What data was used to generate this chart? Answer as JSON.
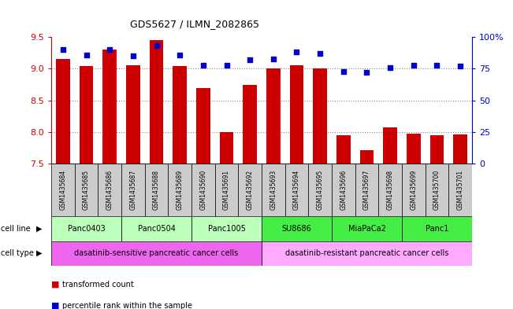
{
  "title": "GDS5627 / ILMN_2082865",
  "samples": [
    "GSM1435684",
    "GSM1435685",
    "GSM1435686",
    "GSM1435687",
    "GSM1435688",
    "GSM1435689",
    "GSM1435690",
    "GSM1435691",
    "GSM1435692",
    "GSM1435693",
    "GSM1435694",
    "GSM1435695",
    "GSM1435696",
    "GSM1435697",
    "GSM1435698",
    "GSM1435699",
    "GSM1435700",
    "GSM1435701"
  ],
  "transformed_count": [
    9.15,
    9.04,
    9.3,
    9.05,
    9.45,
    9.04,
    8.7,
    8.0,
    8.75,
    9.0,
    9.05,
    9.0,
    7.95,
    7.72,
    8.07,
    7.97,
    7.95,
    7.96
  ],
  "percentile_rank": [
    90,
    86,
    90,
    85,
    93,
    86,
    78,
    78,
    82,
    83,
    88,
    87,
    73,
    72,
    76,
    78,
    78,
    77
  ],
  "ylim_left": [
    7.5,
    9.5
  ],
  "ylim_right": [
    0,
    100
  ],
  "yticks_left": [
    7.5,
    8.0,
    8.5,
    9.0,
    9.5
  ],
  "yticks_right": [
    0,
    25,
    50,
    75,
    100
  ],
  "bar_color": "#cc0000",
  "dot_color": "#0000cc",
  "bar_bottom": 7.5,
  "cell_lines": [
    {
      "name": "Panc0403",
      "start": 0,
      "end": 3,
      "color": "#bbffbb"
    },
    {
      "name": "Panc0504",
      "start": 3,
      "end": 6,
      "color": "#bbffbb"
    },
    {
      "name": "Panc1005",
      "start": 6,
      "end": 9,
      "color": "#bbffbb"
    },
    {
      "name": "SU8686",
      "start": 9,
      "end": 12,
      "color": "#44ee44"
    },
    {
      "name": "MiaPaCa2",
      "start": 12,
      "end": 15,
      "color": "#44ee44"
    },
    {
      "name": "Panc1",
      "start": 15,
      "end": 18,
      "color": "#44ee44"
    }
  ],
  "cell_types": [
    {
      "name": "dasatinib-sensitive pancreatic cancer cells",
      "start": 0,
      "end": 9,
      "color": "#ee66ee"
    },
    {
      "name": "dasatinib-resistant pancreatic cancer cells",
      "start": 9,
      "end": 18,
      "color": "#ffaaff"
    }
  ],
  "grid_color": "#888888",
  "bg_color": "#ffffff",
  "left_tick_color": "#cc0000",
  "right_tick_color": "#0000cc",
  "sample_box_color": "#cccccc"
}
